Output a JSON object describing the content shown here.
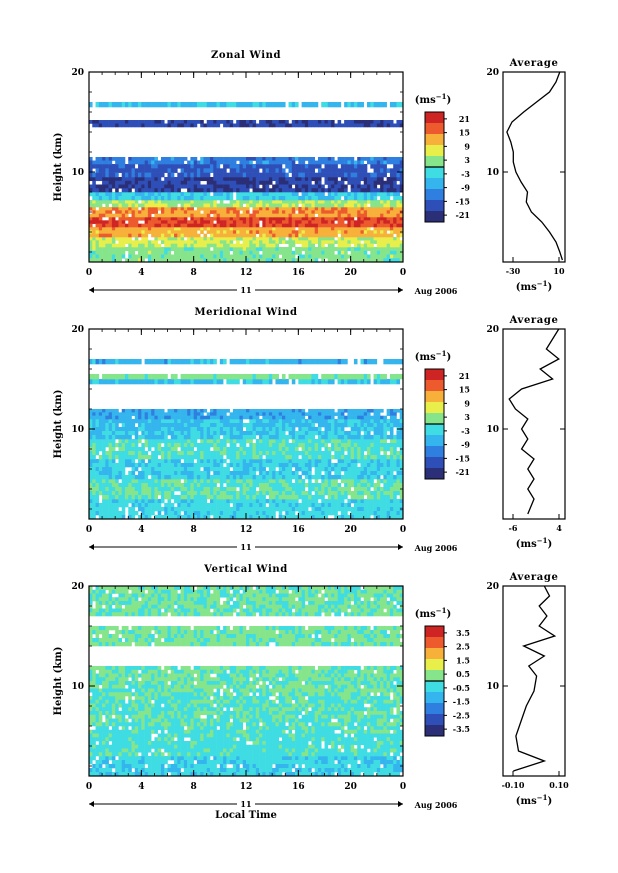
{
  "figure": {
    "date_label": "Aug 2006",
    "xlabel_bottom": "Local Time"
  },
  "chart_data": [
    {
      "type": "heatmap",
      "title": "Zonal Wind",
      "ylabel": "Height (km)",
      "xlabel": "",
      "x_ticks": [
        "0",
        "4",
        "8",
        "12",
        "16",
        "20",
        "0"
      ],
      "xlim": [
        0,
        24
      ],
      "x_day_label": "11",
      "y_ticks": [
        "20",
        "10"
      ],
      "ylim": [
        1,
        20
      ],
      "colorbar": {
        "unit_label": "(ms",
        "unit_exp": "−1",
        "unit_close": ")",
        "ticks": [
          "21",
          "15",
          "9",
          "3",
          "-3",
          "-9",
          "-15",
          "-21"
        ],
        "range": [
          -24,
          24
        ]
      },
      "layers": [
        {
          "bottom": 1,
          "top": 2.5,
          "value": 2
        },
        {
          "bottom": 2.5,
          "top": 3.5,
          "value": 6
        },
        {
          "bottom": 3.5,
          "top": 4.5,
          "value": 12
        },
        {
          "bottom": 4.5,
          "top": 5.5,
          "value": 19
        },
        {
          "bottom": 5.5,
          "top": 6.5,
          "value": 13
        },
        {
          "bottom": 6.5,
          "top": 7.2,
          "value": 4
        },
        {
          "bottom": 7.2,
          "top": 8,
          "value": -4
        },
        {
          "bottom": 8,
          "top": 9.5,
          "value": -19
        },
        {
          "bottom": 9.5,
          "top": 10.8,
          "value": -16
        },
        {
          "bottom": 10.8,
          "top": 11.5,
          "value": -12
        },
        {
          "bottom": 14.5,
          "top": 15.2,
          "value": -18
        },
        {
          "bottom": 16.5,
          "top": 17,
          "value": -6
        }
      ],
      "average": {
        "title": "Average",
        "xlabel": "(ms",
        "xlabel_exp": "−1",
        "xlabel_close": ")",
        "x_ticks": [
          "-30",
          "10"
        ],
        "y_ticks": [
          "20",
          "10"
        ],
        "xlim": [
          -36,
          12
        ],
        "ylim": [
          1,
          20
        ],
        "points": [
          [
            10,
            1.2
          ],
          [
            8,
            2
          ],
          [
            5,
            3
          ],
          [
            0,
            4
          ],
          [
            -6,
            5
          ],
          [
            -14,
            6
          ],
          [
            -18,
            7
          ],
          [
            -17,
            8
          ],
          [
            -22,
            9
          ],
          [
            -26,
            10
          ],
          [
            -28,
            11
          ],
          [
            -28,
            12
          ],
          [
            -30,
            13
          ],
          [
            -33,
            14
          ],
          [
            -29,
            15
          ],
          [
            -20,
            16
          ],
          [
            -10,
            17
          ],
          [
            0,
            18
          ],
          [
            5,
            19
          ],
          [
            8,
            20
          ]
        ]
      }
    },
    {
      "type": "heatmap",
      "title": "Meridional Wind",
      "ylabel": "Height (km)",
      "xlabel": "",
      "x_ticks": [
        "0",
        "4",
        "8",
        "12",
        "16",
        "20",
        "0"
      ],
      "xlim": [
        0,
        24
      ],
      "x_day_label": "11",
      "y_ticks": [
        "20",
        "10"
      ],
      "ylim": [
        1,
        20
      ],
      "colorbar": {
        "unit_label": "(ms",
        "unit_exp": "−1",
        "unit_close": ")",
        "ticks": [
          "21",
          "15",
          "9",
          "3",
          "-3",
          "-9",
          "-15",
          "-21"
        ],
        "range": [
          -24,
          24
        ]
      },
      "layers": [
        {
          "bottom": 1,
          "top": 3,
          "value": -3
        },
        {
          "bottom": 3,
          "top": 5,
          "value": 0
        },
        {
          "bottom": 5,
          "top": 7,
          "value": -4
        },
        {
          "bottom": 7,
          "top": 9,
          "value": -1
        },
        {
          "bottom": 9,
          "top": 11,
          "value": -5
        },
        {
          "bottom": 11,
          "top": 12,
          "value": -8
        },
        {
          "bottom": 14.5,
          "top": 15,
          "value": -6
        },
        {
          "bottom": 15,
          "top": 15.5,
          "value": 2
        },
        {
          "bottom": 16.5,
          "top": 17,
          "value": -7
        }
      ],
      "average": {
        "title": "Average",
        "xlabel": "(ms",
        "xlabel_exp": "−1",
        "xlabel_close": ")",
        "x_ticks": [
          "-6",
          "4"
        ],
        "y_ticks": [
          "20",
          "10"
        ],
        "xlim": [
          -6,
          4
        ],
        "ylim": [
          1,
          20
        ],
        "points": [
          [
            -2,
            1.5
          ],
          [
            -1,
            3
          ],
          [
            -2,
            4
          ],
          [
            -1,
            5
          ],
          [
            -2,
            6
          ],
          [
            -1,
            7
          ],
          [
            -3,
            8
          ],
          [
            -2,
            9
          ],
          [
            -3,
            10
          ],
          [
            -2,
            11
          ],
          [
            -4,
            12
          ],
          [
            -5,
            13
          ],
          [
            -3,
            14
          ],
          [
            2,
            15
          ],
          [
            0,
            16
          ],
          [
            3,
            17
          ],
          [
            1,
            18
          ],
          [
            2,
            19
          ],
          [
            3,
            20
          ]
        ]
      }
    },
    {
      "type": "heatmap",
      "title": "Vertical Wind",
      "ylabel": "Height (km)",
      "xlabel": "Local Time",
      "x_ticks": [
        "0",
        "4",
        "8",
        "12",
        "16",
        "20",
        "0"
      ],
      "xlim": [
        0,
        24
      ],
      "x_day_label": "11",
      "y_ticks": [
        "20",
        "10"
      ],
      "ylim": [
        1,
        20
      ],
      "colorbar": {
        "unit_label": "(ms",
        "unit_exp": "−1",
        "unit_close": ")",
        "ticks": [
          "3.5",
          "2.5",
          "1.5",
          "0.5",
          "-0.5",
          "-1.5",
          "-2.5",
          "-3.5"
        ],
        "range": [
          -4,
          4
        ]
      },
      "layers": [
        {
          "bottom": 1,
          "top": 3,
          "value": -0.6
        },
        {
          "bottom": 3,
          "top": 6,
          "value": -0.3
        },
        {
          "bottom": 6,
          "top": 9,
          "value": -0.1
        },
        {
          "bottom": 9,
          "top": 12,
          "value": 0.1
        },
        {
          "bottom": 14,
          "top": 16,
          "value": 0.2
        },
        {
          "bottom": 17,
          "top": 20,
          "value": 0.1
        }
      ],
      "average": {
        "title": "Average",
        "xlabel": "(ms",
        "xlabel_exp": "−1",
        "xlabel_close": ")",
        "x_ticks": [
          "-0.10",
          "0.10"
        ],
        "y_ticks": [
          "20",
          "10"
        ],
        "xlim": [
          -0.12,
          0.12
        ],
        "ylim": [
          1,
          20
        ],
        "points": [
          [
            -0.08,
            1.5
          ],
          [
            0.04,
            2.5
          ],
          [
            -0.06,
            3.5
          ],
          [
            -0.07,
            5
          ],
          [
            -0.05,
            6.5
          ],
          [
            -0.03,
            8
          ],
          [
            0.0,
            9.5
          ],
          [
            0.01,
            11
          ],
          [
            -0.02,
            12
          ],
          [
            0.04,
            13
          ],
          [
            -0.04,
            14
          ],
          [
            0.08,
            15
          ],
          [
            0.02,
            16
          ],
          [
            0.05,
            17
          ],
          [
            0.02,
            18
          ],
          [
            0.06,
            19
          ],
          [
            0.04,
            20
          ]
        ]
      }
    }
  ]
}
